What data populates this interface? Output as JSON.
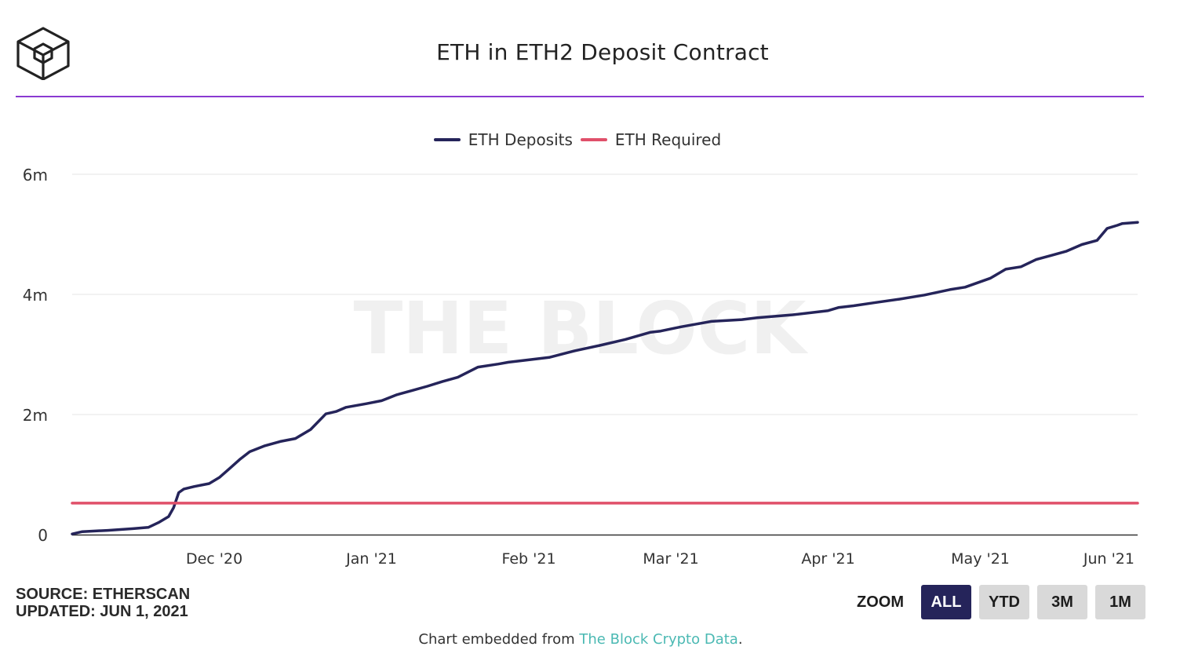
{
  "header": {
    "title": "ETH in ETH2 Deposit Contract"
  },
  "colors": {
    "accent_rule": "#8a3ad1",
    "deposits": "#25245a",
    "required": "#e0506a",
    "watermark": "#f0f0f0"
  },
  "watermark": "THE BLOCK",
  "source": {
    "line1": "SOURCE: ETHERSCAN",
    "line2": "UPDATED: JUN 1, 2021"
  },
  "zoom": {
    "label": "ZOOM",
    "buttons": [
      "ALL",
      "YTD",
      "3M",
      "1M"
    ],
    "selected": "ALL"
  },
  "footer": {
    "prefix": "Chart embedded from ",
    "link": "The Block Crypto Data",
    "suffix": "."
  },
  "chart_data": {
    "type": "line",
    "ylim": [
      0,
      6000000
    ],
    "y_ticks": [
      0,
      2000000,
      4000000,
      6000000
    ],
    "y_tick_labels": [
      "0",
      "2m",
      "4m",
      "6m"
    ],
    "x_range": [
      "2020-11-03",
      "2021-06-01"
    ],
    "x_ticks": [
      "2020-12-01",
      "2021-01-01",
      "2021-02-01",
      "2021-03-01",
      "2021-04-01",
      "2021-05-01",
      "2021-06-01"
    ],
    "x_tick_labels": [
      "Dec '20",
      "Jan '21",
      "Feb '21",
      "Mar '21",
      "Apr '21",
      "May '21",
      "Jun '21"
    ],
    "grid": true,
    "legend": "top-center",
    "series": [
      {
        "name": "ETH Deposits",
        "x": [
          "2020-11-03",
          "2020-11-05",
          "2020-11-10",
          "2020-11-15",
          "2020-11-18",
          "2020-11-20",
          "2020-11-22",
          "2020-11-23",
          "2020-11-24",
          "2020-11-25",
          "2020-11-27",
          "2020-11-30",
          "2020-12-02",
          "2020-12-04",
          "2020-12-06",
          "2020-12-08",
          "2020-12-11",
          "2020-12-14",
          "2020-12-17",
          "2020-12-20",
          "2020-12-23",
          "2020-12-25",
          "2020-12-27",
          "2020-12-31",
          "2021-01-03",
          "2021-01-06",
          "2021-01-09",
          "2021-01-12",
          "2021-01-15",
          "2021-01-18",
          "2021-01-22",
          "2021-01-26",
          "2021-01-28",
          "2021-01-30",
          "2021-02-05",
          "2021-02-10",
          "2021-02-15",
          "2021-02-20",
          "2021-02-25",
          "2021-02-27",
          "2021-03-03",
          "2021-03-07",
          "2021-03-09",
          "2021-03-15",
          "2021-03-18",
          "2021-03-25",
          "2021-04-01",
          "2021-04-03",
          "2021-04-06",
          "2021-04-10",
          "2021-04-15",
          "2021-04-20",
          "2021-04-25",
          "2021-04-28",
          "2021-05-03",
          "2021-05-06",
          "2021-05-09",
          "2021-05-12",
          "2021-05-15",
          "2021-05-18",
          "2021-05-21",
          "2021-05-24",
          "2021-05-26",
          "2021-05-28",
          "2021-05-29",
          "2021-06-01"
        ],
        "values": [
          10000,
          50000,
          70000,
          100000,
          120000,
          200000,
          300000,
          450000,
          700000,
          760000,
          800000,
          850000,
          950000,
          1100000,
          1250000,
          1380000,
          1480000,
          1550000,
          1600000,
          1750000,
          2010000,
          2050000,
          2120000,
          2180000,
          2230000,
          2330000,
          2400000,
          2470000,
          2550000,
          2620000,
          2790000,
          2840000,
          2870000,
          2890000,
          2950000,
          3060000,
          3150000,
          3250000,
          3370000,
          3390000,
          3460000,
          3520000,
          3550000,
          3580000,
          3610000,
          3660000,
          3730000,
          3780000,
          3810000,
          3860000,
          3920000,
          3990000,
          4080000,
          4120000,
          4270000,
          4420000,
          4460000,
          4580000,
          4650000,
          4720000,
          4830000,
          4900000,
          5100000,
          5150000,
          5180000,
          5200000
        ]
      },
      {
        "name": "ETH Required",
        "x": [
          "2020-11-03",
          "2021-06-01"
        ],
        "values": [
          524288,
          524288
        ]
      }
    ]
  }
}
